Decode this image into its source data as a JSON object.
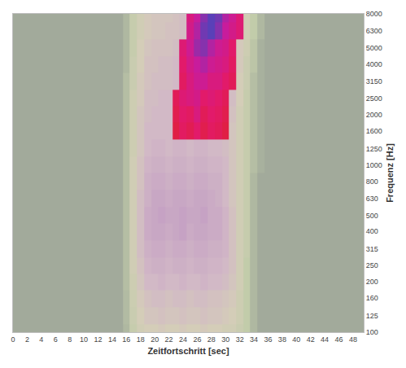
{
  "chart_data": {
    "type": "heatmap",
    "x_label": "Zeitfortschritt [sec]",
    "y_label": "Frequenz [Hz]",
    "log": "y",
    "grid": false,
    "x": [
      15,
      16,
      17,
      18,
      19,
      20,
      21,
      22,
      23,
      24,
      25,
      26,
      27,
      28,
      29,
      30,
      31,
      32,
      33,
      34,
      35,
      36,
      37
    ],
    "y": [
      100,
      125,
      160,
      200,
      250,
      315,
      400,
      500,
      630,
      800,
      1000,
      1250,
      1600,
      2000,
      2500,
      3150,
      4000,
      5000,
      6300,
      8000
    ],
    "xlim": [
      0,
      49.5
    ],
    "xticks": [
      0,
      2,
      4,
      6,
      8,
      10,
      12,
      14,
      16,
      18,
      20,
      22,
      24,
      26,
      28,
      30,
      32,
      34,
      36,
      38,
      40,
      42,
      44,
      46,
      48
    ],
    "ylim": [
      100,
      8000
    ],
    "yticks": [
      100,
      125,
      160,
      200,
      250,
      315,
      400,
      500,
      630,
      800,
      1000,
      1250,
      1600,
      2000,
      2500,
      3150,
      4000,
      5000,
      6300,
      8000
    ],
    "zlim": [
      0,
      100
    ],
    "z": [
      [
        10,
        14,
        22,
        28,
        30,
        30,
        32,
        30,
        30,
        32,
        30,
        30,
        32,
        30,
        30,
        28,
        28,
        24,
        20,
        14,
        10,
        10,
        10
      ],
      [
        10,
        15,
        24,
        30,
        34,
        34,
        36,
        34,
        34,
        36,
        34,
        34,
        36,
        34,
        34,
        32,
        30,
        26,
        20,
        14,
        10,
        10,
        10
      ],
      [
        10,
        15,
        25,
        32,
        36,
        38,
        38,
        36,
        38,
        38,
        36,
        38,
        38,
        36,
        36,
        34,
        32,
        26,
        20,
        14,
        10,
        10,
        10
      ],
      [
        10,
        16,
        26,
        34,
        40,
        40,
        42,
        40,
        40,
        42,
        40,
        40,
        42,
        40,
        40,
        38,
        34,
        28,
        20,
        14,
        10,
        10,
        10
      ],
      [
        10,
        16,
        28,
        36,
        42,
        44,
        44,
        42,
        44,
        44,
        42,
        44,
        44,
        42,
        42,
        40,
        36,
        28,
        20,
        14,
        10,
        10,
        10
      ],
      [
        10,
        16,
        28,
        38,
        44,
        46,
        46,
        44,
        46,
        46,
        44,
        46,
        46,
        44,
        44,
        42,
        36,
        28,
        22,
        14,
        10,
        10,
        10
      ],
      [
        10,
        16,
        28,
        38,
        46,
        48,
        48,
        46,
        48,
        50,
        46,
        48,
        48,
        46,
        46,
        42,
        36,
        28,
        22,
        14,
        10,
        10,
        10
      ],
      [
        10,
        16,
        28,
        38,
        46,
        48,
        50,
        48,
        48,
        50,
        48,
        48,
        50,
        46,
        46,
        42,
        36,
        28,
        22,
        14,
        10,
        10,
        10
      ],
      [
        10,
        16,
        28,
        38,
        44,
        48,
        48,
        46,
        48,
        48,
        46,
        48,
        48,
        46,
        44,
        40,
        34,
        28,
        22,
        14,
        10,
        10,
        10
      ],
      [
        10,
        16,
        28,
        36,
        44,
        46,
        46,
        44,
        46,
        46,
        44,
        46,
        46,
        44,
        44,
        40,
        34,
        28,
        22,
        14,
        10,
        10,
        10
      ],
      [
        10,
        16,
        28,
        36,
        42,
        44,
        44,
        42,
        44,
        44,
        42,
        44,
        44,
        42,
        42,
        40,
        34,
        28,
        22,
        16,
        12,
        10,
        10
      ],
      [
        10,
        16,
        26,
        34,
        40,
        42,
        42,
        40,
        42,
        42,
        40,
        42,
        42,
        40,
        40,
        38,
        34,
        28,
        22,
        16,
        12,
        10,
        10
      ],
      [
        10,
        16,
        26,
        34,
        40,
        40,
        40,
        40,
        72,
        78,
        75,
        80,
        74,
        78,
        76,
        72,
        34,
        28,
        22,
        16,
        12,
        10,
        10
      ],
      [
        10,
        16,
        26,
        34,
        38,
        40,
        40,
        40,
        74,
        80,
        78,
        84,
        76,
        80,
        78,
        74,
        36,
        28,
        22,
        16,
        12,
        10,
        10
      ],
      [
        10,
        16,
        26,
        32,
        38,
        38,
        40,
        40,
        76,
        82,
        84,
        86,
        80,
        82,
        80,
        76,
        38,
        30,
        22,
        16,
        12,
        10,
        10
      ],
      [
        10,
        16,
        24,
        32,
        36,
        38,
        38,
        38,
        40,
        78,
        84,
        88,
        88,
        84,
        84,
        80,
        76,
        30,
        24,
        16,
        12,
        10,
        10
      ],
      [
        10,
        14,
        24,
        30,
        36,
        36,
        38,
        38,
        40,
        80,
        86,
        90,
        92,
        88,
        86,
        84,
        78,
        32,
        24,
        18,
        12,
        10,
        10
      ],
      [
        10,
        14,
        22,
        30,
        34,
        36,
        36,
        36,
        38,
        82,
        88,
        94,
        96,
        92,
        88,
        86,
        80,
        32,
        26,
        18,
        12,
        10,
        10
      ],
      [
        10,
        14,
        22,
        28,
        32,
        34,
        34,
        36,
        36,
        38,
        86,
        92,
        98,
        100,
        96,
        90,
        86,
        82,
        28,
        20,
        14,
        10,
        10
      ],
      [
        10,
        14,
        22,
        28,
        32,
        34,
        34,
        34,
        36,
        38,
        84,
        90,
        96,
        100,
        98,
        92,
        88,
        82,
        28,
        20,
        14,
        10,
        10
      ]
    ]
  }
}
